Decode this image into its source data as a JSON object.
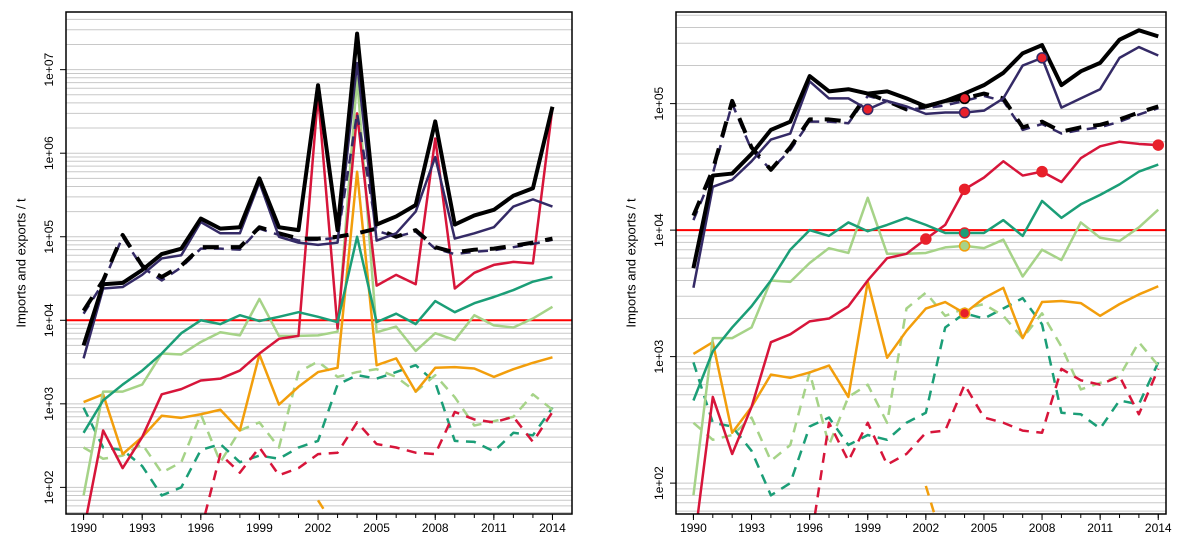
{
  "chart_data": [
    {
      "type": "line",
      "ylabel": "Imports and exports  / t",
      "log_y": true,
      "grid": true,
      "x": [
        1990,
        1991,
        1992,
        1993,
        1994,
        1995,
        1996,
        1997,
        1998,
        1999,
        2000,
        2001,
        2002,
        2003,
        2004,
        2005,
        2006,
        2007,
        2008,
        2009,
        2010,
        2011,
        2012,
        2013,
        2014
      ],
      "xlim": [
        1989.1,
        2015
      ],
      "xticks": [
        1990,
        1993,
        1996,
        1999,
        2002,
        2005,
        2008,
        2011,
        2014
      ],
      "ylim": [
        48,
        49000000
      ],
      "yticks": [
        {
          "value": 100,
          "label": "1e+02"
        },
        {
          "value": 1000,
          "label": "1e+03"
        },
        {
          "value": 10000,
          "label": "1e+04"
        },
        {
          "value": 100000,
          "label": "1e+05"
        },
        {
          "value": 1000000,
          "label": "1e+06"
        },
        {
          "value": 10000000,
          "label": "1e+07"
        }
      ],
      "hline": {
        "value": 10000,
        "color": "#ff0000"
      },
      "series": [
        {
          "color": "#1b9e77",
          "dash": "dashed",
          "width": 2.5,
          "values": [
            900,
            300,
            280,
            180,
            80,
            100,
            280,
            330,
            200,
            240,
            220,
            300,
            360,
            1700,
            2200,
            2000,
            2400,
            2900,
            1800,
            360,
            350,
            270,
            450,
            420,
            900
          ]
        },
        {
          "color": "#a6d388",
          "dash": "dashed",
          "width": 2.5,
          "values": [
            300,
            220,
            240,
            330,
            150,
            200,
            750,
            200,
            480,
            600,
            300,
            2400,
            3200,
            2100,
            2400,
            2600,
            2100,
            1400,
            2200,
            1200,
            550,
            620,
            700,
            1300,
            850
          ]
        },
        {
          "color": "#d7153a",
          "dash": "dashed",
          "width": 2.5,
          "values": [
            null,
            null,
            null,
            null,
            null,
            null,
            30,
            250,
            150,
            300,
            140,
            170,
            250,
            260,
            600,
            330,
            300,
            260,
            250,
            800,
            650,
            600,
            700,
            350,
            800
          ]
        },
        {
          "color": "#f29e0c",
          "dash": "dashed",
          "width": 2.5,
          "values": [
            null,
            null,
            null,
            null,
            null,
            null,
            null,
            null,
            null,
            null,
            null,
            null,
            70,
            30,
            null,
            null,
            null,
            null,
            null,
            null,
            null,
            null,
            null,
            null,
            null
          ]
        },
        {
          "color": "#f29e0c",
          "dash": "solid",
          "width": 2.5,
          "values": [
            1050,
            1300,
            250,
            400,
            720,
            680,
            750,
            850,
            480,
            3900,
            980,
            1600,
            2400,
            2700,
            600000,
            2900,
            3500,
            1400,
            2700,
            2750,
            2650,
            2100,
            2600,
            3100,
            3600
          ]
        },
        {
          "color": "#a6d388",
          "dash": "solid",
          "width": 2.5,
          "values": [
            80,
            1400,
            1400,
            1700,
            4000,
            3900,
            5500,
            7200,
            6600,
            18000,
            6500,
            6500,
            6600,
            7300,
            8000000,
            7200,
            8400,
            4300,
            7000,
            5800,
            11500,
            8700,
            8200,
            10500,
            14500
          ]
        },
        {
          "color": "#d7153a",
          "dash": "solid",
          "width": 2.5,
          "values": [
            30,
            480,
            170,
            400,
            1300,
            1500,
            1900,
            2000,
            2500,
            4000,
            6000,
            6500,
            5000000,
            8000,
            3000000,
            26000,
            35000,
            27000,
            1500000,
            24000,
            37000,
            46000,
            50000,
            48000,
            3500000
          ]
        },
        {
          "color": "#1b9e77",
          "dash": "solid",
          "width": 2.5,
          "values": [
            450,
            1100,
            1700,
            2500,
            4000,
            7000,
            10000,
            9000,
            11500,
            9800,
            11000,
            12500,
            11000,
            9500,
            100000,
            9500,
            12000,
            9000,
            17000,
            12500,
            16000,
            19000,
            23000,
            29000,
            33000
          ]
        },
        {
          "color": "#342a66",
          "dash": "dashed",
          "width": 2.5,
          "values": [
            12000,
            28000,
            100000,
            43000,
            30000,
            43000,
            72000,
            72000,
            70000,
            125000,
            105000,
            90000,
            92000,
            97000,
            3000000,
            118000,
            100000,
            115000,
            72000,
            62000,
            66000,
            69000,
            75000,
            82000,
            92000
          ]
        },
        {
          "color": "#000000",
          "dash": "dashed",
          "width": 4,
          "values": [
            13000,
            30000,
            105000,
            45000,
            33000,
            45000,
            75000,
            75000,
            75000,
            130000,
            110000,
            95000,
            95000,
            100000,
            110000,
            125000,
            100000,
            120000,
            75000,
            65000,
            70000,
            72000,
            78000,
            85000,
            95000
          ]
        },
        {
          "color": "#342a66",
          "dash": "solid",
          "width": 2.5,
          "values": [
            3500,
            24000,
            25000,
            35000,
            55000,
            60000,
            150000,
            110000,
            110000,
            450000,
            100000,
            85000,
            80000,
            85000,
            12000000,
            90000,
            110000,
            200000,
            900000,
            95000,
            110000,
            130000,
            230000,
            280000,
            230000
          ]
        },
        {
          "color": "#000000",
          "dash": "solid",
          "width": 4,
          "values": [
            5000,
            27000,
            28000,
            40000,
            62000,
            72000,
            165000,
            125000,
            130000,
            500000,
            130000,
            120000,
            6500000,
            120000,
            27000000,
            140000,
            175000,
            240000,
            2400000,
            140000,
            180000,
            210000,
            310000,
            380000,
            3600000
          ]
        }
      ]
    },
    {
      "type": "line",
      "ylabel": "Imports and exports  / t",
      "log_y": true,
      "grid": true,
      "x": [
        1990,
        1991,
        1992,
        1993,
        1994,
        1995,
        1996,
        1997,
        1998,
        1999,
        2000,
        2001,
        2002,
        2003,
        2004,
        2005,
        2006,
        2007,
        2008,
        2009,
        2010,
        2011,
        2012,
        2013,
        2014
      ],
      "xlim": [
        1989.1,
        2014.4
      ],
      "xticks": [
        1990,
        1993,
        1996,
        1999,
        2002,
        2005,
        2008,
        2011,
        2014
      ],
      "ylim": [
        57,
        530000
      ],
      "yticks": [
        {
          "value": 100,
          "label": "1e+02"
        },
        {
          "value": 1000,
          "label": "1e+03"
        },
        {
          "value": 10000,
          "label": "1e+04"
        },
        {
          "value": 100000,
          "label": "1e+05"
        }
      ],
      "hline": {
        "value": 10000,
        "color": "#ff0000"
      },
      "series": [
        {
          "color": "#1b9e77",
          "dash": "dashed",
          "width": 2.5,
          "values": [
            900,
            300,
            280,
            180,
            80,
            100,
            280,
            330,
            200,
            240,
            220,
            300,
            360,
            1700,
            2200,
            2000,
            2400,
            2900,
            1800,
            360,
            350,
            270,
            450,
            420,
            900
          ]
        },
        {
          "color": "#a6d388",
          "dash": "dashed",
          "width": 2.5,
          "values": [
            300,
            220,
            240,
            330,
            150,
            200,
            750,
            200,
            480,
            600,
            300,
            2400,
            3200,
            2100,
            2400,
            2600,
            2100,
            1400,
            2200,
            1200,
            550,
            620,
            700,
            1300,
            850
          ]
        },
        {
          "color": "#d7153a",
          "dash": "dashed",
          "width": 2.5,
          "values": [
            null,
            null,
            null,
            null,
            null,
            null,
            30,
            300,
            150,
            300,
            140,
            170,
            250,
            260,
            600,
            330,
            300,
            260,
            250,
            800,
            650,
            600,
            700,
            350,
            800
          ]
        },
        {
          "color": "#f29e0c",
          "dash": "dashed",
          "width": 2.5,
          "values": [
            null,
            null,
            null,
            null,
            null,
            null,
            null,
            null,
            null,
            null,
            null,
            null,
            95,
            30,
            null,
            null,
            null,
            null,
            null,
            null,
            null,
            null,
            null,
            null,
            null
          ]
        },
        {
          "color": "#f29e0c",
          "dash": "solid",
          "width": 2.5,
          "values": [
            1050,
            1300,
            250,
            400,
            720,
            680,
            750,
            850,
            480,
            3900,
            980,
            1600,
            2400,
            2700,
            2200,
            2900,
            3500,
            1400,
            2700,
            2750,
            2650,
            2100,
            2600,
            3100,
            3600
          ]
        },
        {
          "color": "#a6d388",
          "dash": "solid",
          "width": 2.5,
          "values": [
            80,
            1400,
            1400,
            1700,
            4000,
            3900,
            5500,
            7200,
            6600,
            18000,
            6500,
            6500,
            6600,
            7300,
            7500,
            7200,
            8400,
            4300,
            7000,
            5800,
            11500,
            8700,
            8200,
            10500,
            14500
          ]
        },
        {
          "color": "#d7153a",
          "dash": "solid",
          "width": 2.5,
          "values": [
            30,
            480,
            170,
            400,
            1300,
            1500,
            1900,
            2000,
            2500,
            4000,
            6000,
            6500,
            8500,
            11000,
            21000,
            26000,
            35000,
            27000,
            29000,
            24000,
            37000,
            46000,
            50000,
            48000,
            47000
          ]
        },
        {
          "color": "#1b9e77",
          "dash": "solid",
          "width": 2.5,
          "values": [
            450,
            1100,
            1700,
            2500,
            4000,
            7000,
            10000,
            9000,
            11500,
            9800,
            11000,
            12500,
            11000,
            9500,
            9500,
            9500,
            12000,
            9000,
            17000,
            12500,
            16000,
            19000,
            23000,
            29000,
            33000
          ]
        },
        {
          "color": "#342a66",
          "dash": "dashed",
          "width": 2.5,
          "values": [
            12000,
            28000,
            100000,
            43000,
            30000,
            43000,
            72000,
            72000,
            70000,
            115000,
            105000,
            90000,
            92000,
            97000,
            105000,
            115000,
            105000,
            62000,
            69000,
            58000,
            62000,
            65000,
            72000,
            82000,
            92000
          ]
        },
        {
          "color": "#000000",
          "dash": "dashed",
          "width": 4,
          "values": [
            13000,
            30000,
            105000,
            45000,
            30000,
            45000,
            75000,
            75000,
            72000,
            120000,
            105000,
            90000,
            95000,
            105000,
            110000,
            120000,
            110000,
            65000,
            72000,
            60000,
            65000,
            68000,
            75000,
            85000,
            95000
          ]
        },
        {
          "color": "#342a66",
          "dash": "solid",
          "width": 2.5,
          "values": [
            3500,
            22000,
            25000,
            35000,
            52000,
            58000,
            150000,
            110000,
            110000,
            90000,
            105000,
            95000,
            83000,
            85000,
            85000,
            88000,
            110000,
            200000,
            230000,
            93000,
            110000,
            130000,
            230000,
            280000,
            240000
          ]
        },
        {
          "color": "#000000",
          "dash": "solid",
          "width": 4,
          "values": [
            5000,
            27000,
            28000,
            40000,
            62000,
            72000,
            165000,
            125000,
            130000,
            120000,
            125000,
            110000,
            95000,
            105000,
            120000,
            140000,
            175000,
            250000,
            290000,
            140000,
            180000,
            210000,
            320000,
            380000,
            340000
          ]
        }
      ],
      "points": [
        {
          "x": 1999,
          "y": 90000,
          "fill": "#e8202a",
          "edge": "#342a66"
        },
        {
          "x": 2002,
          "y": 8500,
          "fill": "#e8202a",
          "edge": "#e8202a"
        },
        {
          "x": 2004,
          "y": 21000,
          "fill": "#e8202a",
          "edge": "#e8202a"
        },
        {
          "x": 2004,
          "y": 85000,
          "fill": "#e8202a",
          "edge": "#342a66"
        },
        {
          "x": 2004,
          "y": 110000,
          "fill": "#e8202a",
          "edge": "#000000"
        },
        {
          "x": 2004,
          "y": 9500,
          "fill": "#1b9e77",
          "edge": "#e8202a"
        },
        {
          "x": 2004,
          "y": 7500,
          "fill": "#a6d388",
          "edge": "#f29e0c"
        },
        {
          "x": 2004,
          "y": 2200,
          "fill": "#e8202a",
          "edge": "#f29e0c"
        },
        {
          "x": 2008,
          "y": 230000,
          "fill": "#e8202a",
          "edge": "#342a66"
        },
        {
          "x": 2008,
          "y": 29000,
          "fill": "#e8202a",
          "edge": "#e8202a"
        },
        {
          "x": 2014,
          "y": 47000,
          "fill": "#e8202a",
          "edge": "#e8202a"
        }
      ]
    }
  ]
}
